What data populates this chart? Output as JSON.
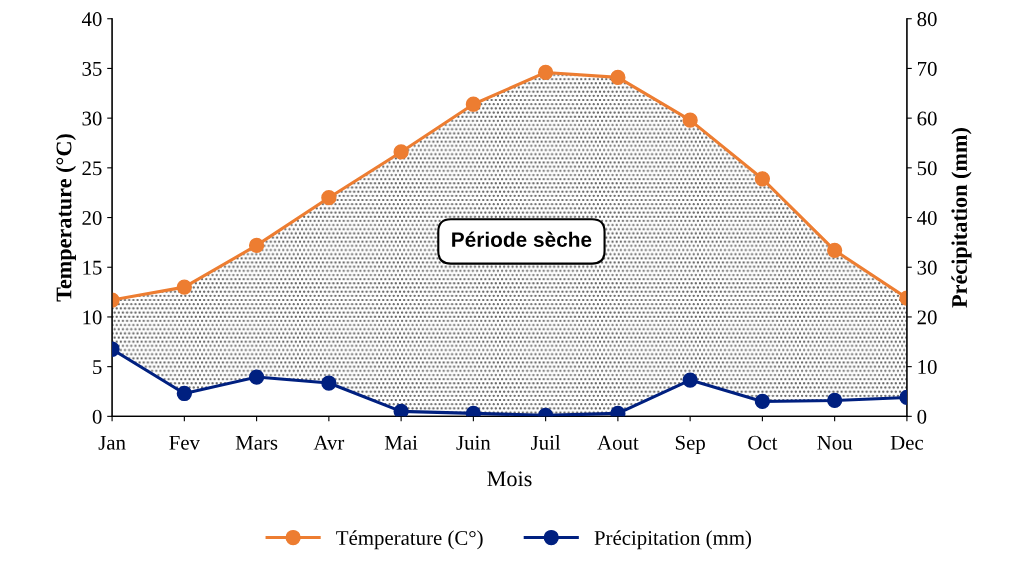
{
  "chart_data": {
    "type": "line",
    "xlabel": "Mois",
    "ylabel": "Temperature (°C)",
    "y2label": "Précipitation (mm)",
    "categories": [
      "Jan",
      "Fev",
      "Mars",
      "Avr",
      "Mai",
      "Juin",
      "Juil",
      "Aout",
      "Sep",
      "Oct",
      "Nou",
      "Dec"
    ],
    "series": [
      {
        "name": "Témperature (C°)",
        "color": "#ed7d31",
        "values": [
          11.7,
          13.0,
          17.2,
          22.0,
          26.6,
          31.4,
          34.6,
          34.1,
          29.8,
          23.9,
          16.7,
          11.9
        ],
        "lower": [
          6.75,
          2.3,
          3.95,
          3.35,
          0.5,
          0.3,
          0.1,
          0.3,
          3.65,
          1.5,
          1.6,
          1.9
        ],
        "upper": [
          11.7,
          13.0,
          17.2,
          22.0,
          26.6,
          31.4,
          34.6,
          34.1,
          29.8,
          23.9,
          16.7,
          11.9
        ]
      },
      {
        "name": "Précipitation (mm)",
        "color": "#002080",
        "axis": "y2",
        "values": [
          13.5,
          4.6,
          7.9,
          6.7,
          1.0,
          0.6,
          0.2,
          0.6,
          7.3,
          3.0,
          3.2,
          3.8
        ]
      }
    ],
    "ylim": [
      0,
      40
    ],
    "yticks": [
      0,
      5,
      10,
      15,
      20,
      25,
      30,
      35,
      40
    ],
    "y2lim": [
      0,
      80
    ],
    "y2ticks": [
      0,
      10,
      20,
      30,
      40,
      50,
      60,
      70,
      80
    ],
    "annotations": [
      "Période sèche"
    ],
    "marker": "circle",
    "line_style": "solid",
    "grid": false,
    "legend": "bottom"
  }
}
